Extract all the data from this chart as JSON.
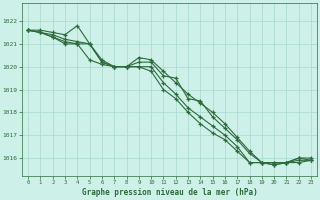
{
  "background_color": "#cdf0e8",
  "grid_color": "#a8d8cc",
  "line_color": "#2d6b3c",
  "xlabel": "Graphe pression niveau de la mer (hPa)",
  "ylim": [
    1015.2,
    1022.8
  ],
  "xlim": [
    -0.5,
    23.5
  ],
  "yticks": [
    1016,
    1017,
    1018,
    1019,
    1020,
    1021,
    1022
  ],
  "xticks": [
    0,
    1,
    2,
    3,
    4,
    5,
    6,
    7,
    8,
    9,
    10,
    11,
    12,
    13,
    14,
    15,
    16,
    17,
    18,
    19,
    20,
    21,
    22,
    23
  ],
  "series": [
    [
      1021.6,
      1021.6,
      1021.5,
      1021.4,
      1021.8,
      1021.0,
      1020.2,
      1020.0,
      1020.0,
      1020.2,
      1020.2,
      1019.6,
      1019.5,
      1018.6,
      1018.5,
      1017.8,
      1017.3,
      1016.8,
      1016.2,
      1015.8,
      1015.8,
      1015.8,
      1016.0,
      1015.9
    ],
    [
      1021.6,
      1021.5,
      1021.4,
      1021.2,
      1021.1,
      1021.0,
      1020.2,
      1020.0,
      1020.0,
      1020.0,
      1020.0,
      1019.3,
      1018.8,
      1018.2,
      1017.8,
      1017.4,
      1017.0,
      1016.5,
      1015.8,
      1015.8,
      1015.7,
      1015.8,
      1015.8,
      1015.9
    ],
    [
      1021.6,
      1021.5,
      1021.3,
      1021.1,
      1021.0,
      1021.0,
      1020.3,
      1020.0,
      1020.0,
      1020.0,
      1019.8,
      1019.0,
      1018.6,
      1018.0,
      1017.5,
      1017.1,
      1016.8,
      1016.3,
      1015.8,
      1015.8,
      1015.7,
      1015.8,
      1015.9,
      1015.9
    ],
    [
      1021.6,
      1021.5,
      1021.3,
      1021.0,
      1021.0,
      1020.3,
      1020.1,
      1020.0,
      1020.0,
      1020.4,
      1020.3,
      1019.8,
      1019.3,
      1018.8,
      1018.4,
      1018.0,
      1017.5,
      1016.9,
      1016.3,
      1015.8,
      1015.8,
      1015.8,
      1016.0,
      1016.0
    ]
  ]
}
